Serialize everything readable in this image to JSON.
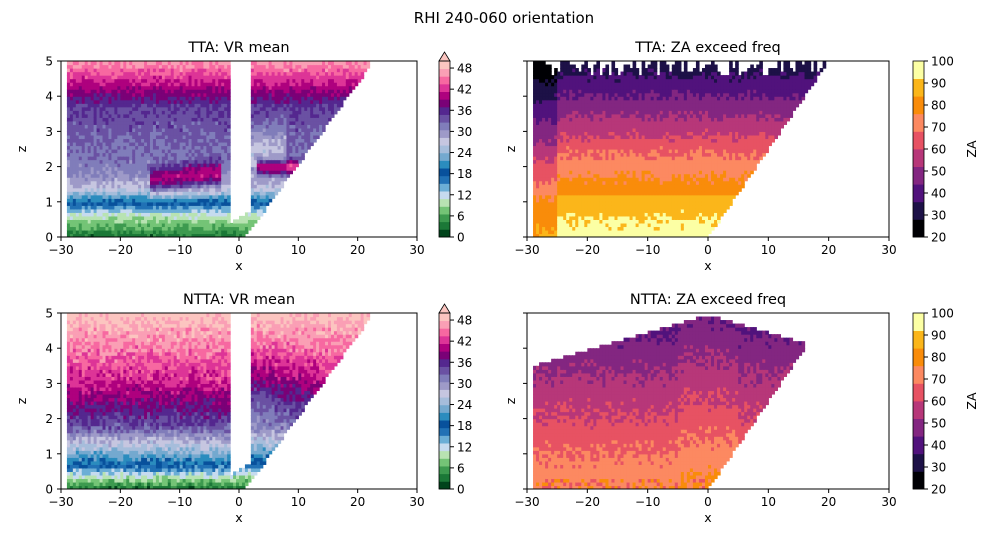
{
  "figure": {
    "suptitle": "RHI 240-060 orientation"
  },
  "colors": {
    "vr_levels": [
      "#00441b",
      "#1b7837",
      "#3d9a4f",
      "#74c476",
      "#b8e3b2",
      "#c6dbef",
      "#6baed6",
      "#2171b5",
      "#08519c",
      "#2b8cbe",
      "#74a9cf",
      "#a6bddb",
      "#c6c6e0",
      "#9e9ac8",
      "#807dba",
      "#6a51a3",
      "#54278f",
      "#7a0177",
      "#ae017e",
      "#dd3497",
      "#f768a1",
      "#fa9fb5",
      "#fcc5c0"
    ],
    "za_levels": [
      "#000004",
      "#1d1147",
      "#51127c",
      "#832681",
      "#b73779",
      "#e75263",
      "#fc8961",
      "#f98c0a",
      "#fbb61a",
      "#fcffa4"
    ]
  },
  "chart_data": [
    {
      "type": "heatmap",
      "panel": "top-left",
      "title": "TTA: VR mean",
      "xlabel": "x",
      "ylabel": "z",
      "xlim": [
        -30,
        30
      ],
      "ylim": [
        0,
        5
      ],
      "xticks": [
        -30,
        -20,
        -10,
        0,
        10,
        20,
        30
      ],
      "yticks": [
        0,
        1,
        2,
        3,
        4,
        5
      ],
      "colorbar": {
        "label": "",
        "ticks": [
          0,
          6,
          12,
          18,
          24,
          30,
          36,
          42,
          48
        ],
        "range": [
          0,
          50
        ],
        "extend": "max",
        "cmap": "vr"
      },
      "field": "vr",
      "case": "tta"
    },
    {
      "type": "heatmap",
      "panel": "top-right",
      "title": "TTA: ZA exceed freq",
      "xlabel": "x",
      "ylabel": "z",
      "xlim": [
        -30,
        30
      ],
      "ylim": [
        0,
        5
      ],
      "xticks": [
        -30,
        -20,
        -10,
        0,
        10,
        20,
        30
      ],
      "yticks": [
        0,
        1,
        2,
        3,
        4,
        5
      ],
      "colorbar": {
        "label": "ZA",
        "ticks": [
          20,
          30,
          40,
          50,
          60,
          70,
          80,
          90,
          100
        ],
        "range": [
          20,
          100
        ],
        "extend": "neither",
        "cmap": "za"
      },
      "field": "za",
      "case": "tta"
    },
    {
      "type": "heatmap",
      "panel": "bottom-left",
      "title": "NTTA: VR mean",
      "xlabel": "x",
      "ylabel": "z",
      "xlim": [
        -30,
        30
      ],
      "ylim": [
        0,
        5
      ],
      "xticks": [
        -30,
        -20,
        -10,
        0,
        10,
        20,
        30
      ],
      "yticks": [
        0,
        1,
        2,
        3,
        4,
        5
      ],
      "colorbar": {
        "label": "",
        "ticks": [
          0,
          6,
          12,
          18,
          24,
          30,
          36,
          42,
          48
        ],
        "range": [
          0,
          50
        ],
        "extend": "max",
        "cmap": "vr"
      },
      "field": "vr",
      "case": "ntta"
    },
    {
      "type": "heatmap",
      "panel": "bottom-right",
      "title": "NTTA: ZA exceed freq",
      "xlabel": "x",
      "ylabel": "z",
      "xlim": [
        -30,
        30
      ],
      "ylim": [
        0,
        5
      ],
      "xticks": [
        -30,
        -20,
        -10,
        0,
        10,
        20,
        30
      ],
      "yticks": [
        0,
        1,
        2,
        3,
        4,
        5
      ],
      "colorbar": {
        "label": "ZA",
        "ticks": [
          20,
          30,
          40,
          50,
          60,
          70,
          80,
          90,
          100
        ],
        "range": [
          20,
          100
        ],
        "extend": "neither",
        "cmap": "za"
      },
      "field": "za",
      "case": "ntta"
    }
  ]
}
